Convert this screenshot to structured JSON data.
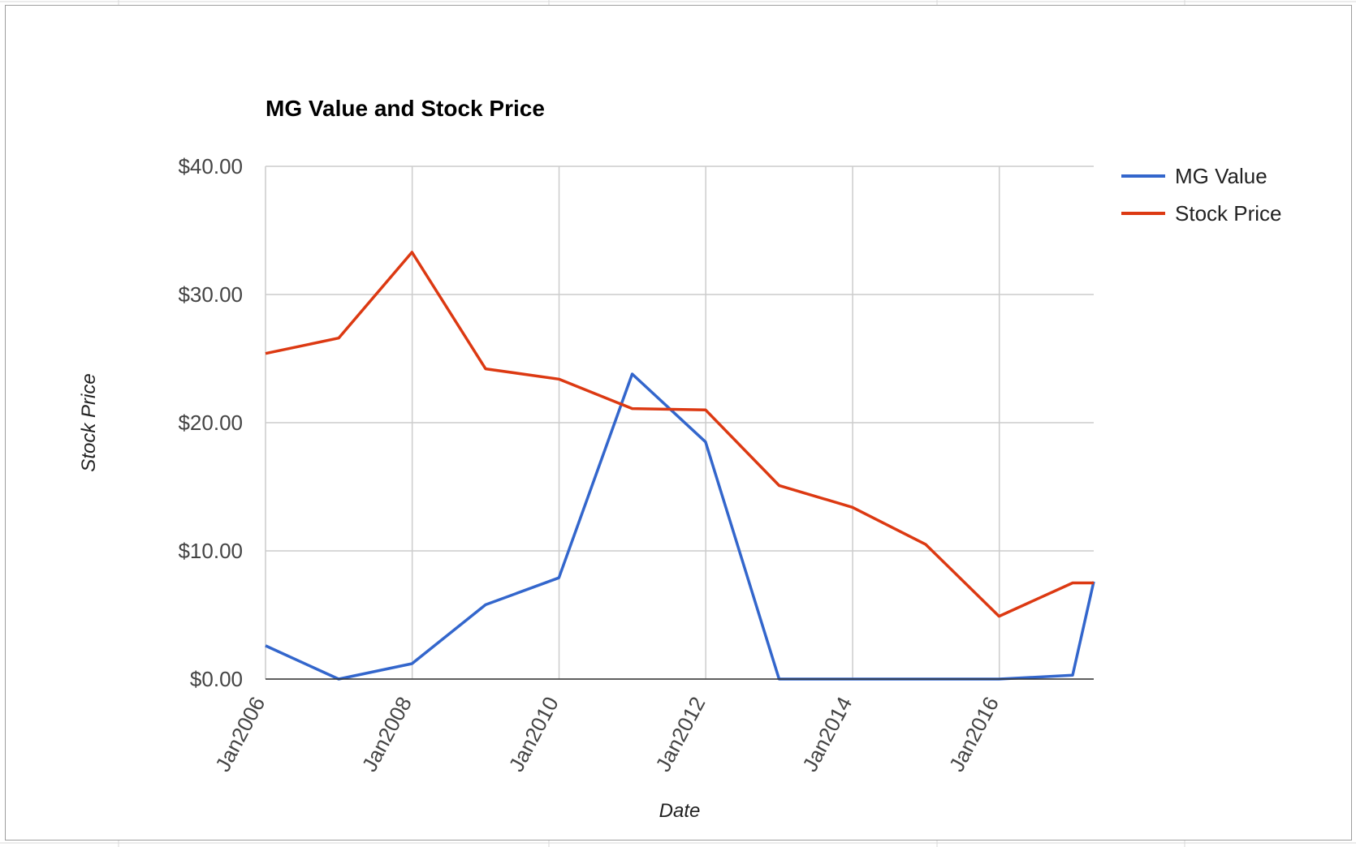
{
  "chart_data": {
    "type": "line",
    "title": "MG Value and Stock Price",
    "xlabel": "Date",
    "ylabel": "Stock Price",
    "x_ticks": [
      "Jan2006",
      "Jan2008",
      "Jan2010",
      "Jan2012",
      "Jan2014",
      "Jan2016"
    ],
    "y_ticks": [
      "$0.00",
      "$10.00",
      "$20.00",
      "$30.00",
      "$40.00"
    ],
    "ylim": [
      0,
      40
    ],
    "xlim": [
      "2006-01-01",
      "2017-04-15"
    ],
    "grid": true,
    "legend_position": "top-right",
    "series": [
      {
        "name": "MG Value",
        "color": "#3366cc",
        "points": [
          [
            "2006-01-01",
            2.6
          ],
          [
            "2006-12-31",
            0.0
          ],
          [
            "2007-12-31",
            1.2
          ],
          [
            "2008-12-31",
            5.8
          ],
          [
            "2009-12-31",
            7.9
          ],
          [
            "2010-12-31",
            23.8
          ],
          [
            "2011-12-31",
            18.5
          ],
          [
            "2012-12-31",
            0.0
          ],
          [
            "2013-12-31",
            0.0
          ],
          [
            "2014-12-31",
            0.0
          ],
          [
            "2015-12-31",
            0.0
          ],
          [
            "2016-12-31",
            0.3
          ],
          [
            "2017-04-15",
            7.6
          ]
        ]
      },
      {
        "name": "Stock Price",
        "color": "#dc3912",
        "points": [
          [
            "2006-01-01",
            25.4
          ],
          [
            "2006-12-31",
            26.6
          ],
          [
            "2007-12-31",
            33.3
          ],
          [
            "2008-12-31",
            24.2
          ],
          [
            "2009-12-31",
            23.4
          ],
          [
            "2010-12-31",
            21.1
          ],
          [
            "2011-12-31",
            21.0
          ],
          [
            "2012-12-31",
            15.1
          ],
          [
            "2013-12-31",
            13.4
          ],
          [
            "2014-12-31",
            10.5
          ],
          [
            "2015-12-31",
            4.9
          ],
          [
            "2016-12-31",
            7.5
          ],
          [
            "2017-04-15",
            7.5
          ]
        ]
      }
    ]
  }
}
